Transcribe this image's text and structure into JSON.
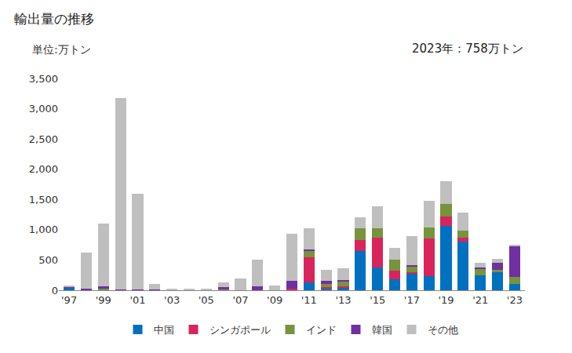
{
  "chart_data": {
    "type": "bar",
    "title": "輸出量の推移",
    "ylabel": "単位:万トン",
    "annotations": [
      "2023年：758万トン"
    ],
    "stacked": true,
    "grid": false,
    "legend": "bottom",
    "categories": [
      "'97",
      null,
      "'99",
      null,
      "'01",
      null,
      "'03",
      null,
      "'05",
      null,
      "'07",
      null,
      "'09",
      null,
      "'11",
      null,
      "'13",
      null,
      "'15",
      null,
      "'17",
      null,
      "'19",
      null,
      "'21",
      null,
      "'23"
    ],
    "series": [
      {
        "name": "中国",
        "color": "#0070C0",
        "values": [
          40,
          0,
          0,
          0,
          0,
          0,
          0,
          0,
          0,
          0,
          0,
          0,
          0,
          0,
          130,
          20,
          40,
          650,
          380,
          180,
          270,
          230,
          1060,
          810,
          250,
          300,
          110
        ]
      },
      {
        "name": "シンガポール",
        "color": "#D9245B",
        "values": [
          0,
          0,
          0,
          0,
          0,
          0,
          0,
          0,
          0,
          0,
          0,
          0,
          0,
          30,
          410,
          30,
          30,
          180,
          490,
          150,
          30,
          630,
          160,
          60,
          0,
          0,
          0
        ]
      },
      {
        "name": "インド",
        "color": "#77933C",
        "values": [
          5,
          5,
          30,
          0,
          0,
          0,
          0,
          0,
          0,
          10,
          0,
          0,
          0,
          0,
          110,
          60,
          80,
          190,
          150,
          170,
          100,
          180,
          200,
          110,
          110,
          40,
          110
        ]
      },
      {
        "name": "韓国",
        "color": "#7030A0",
        "values": [
          10,
          15,
          40,
          10,
          10,
          15,
          0,
          0,
          0,
          40,
          0,
          60,
          0,
          130,
          30,
          40,
          20,
          0,
          0,
          0,
          10,
          0,
          0,
          0,
          20,
          120,
          510
        ]
      },
      {
        "name": "その他",
        "color": "#BFBFBF",
        "values": [
          25,
          600,
          1030,
          3170,
          1580,
          85,
          30,
          25,
          15,
          80,
          200,
          440,
          80,
          770,
          340,
          190,
          190,
          190,
          370,
          200,
          480,
          440,
          380,
          300,
          80,
          60,
          28
        ]
      }
    ],
    "ylim": [
      0,
      3500
    ],
    "yticks": [
      0,
      {
        "value": 500,
        "label": "500"
      },
      {
        "value": 1000,
        "label": "1,000"
      },
      {
        "value": 1500,
        "label": "1,500"
      },
      {
        "value": 2000,
        "label": "2,000"
      },
      {
        "value": 2500,
        "label": "2,500"
      },
      {
        "value": 3000,
        "label": "3,000"
      },
      {
        "value": 3500,
        "label": "3,500"
      }
    ]
  }
}
